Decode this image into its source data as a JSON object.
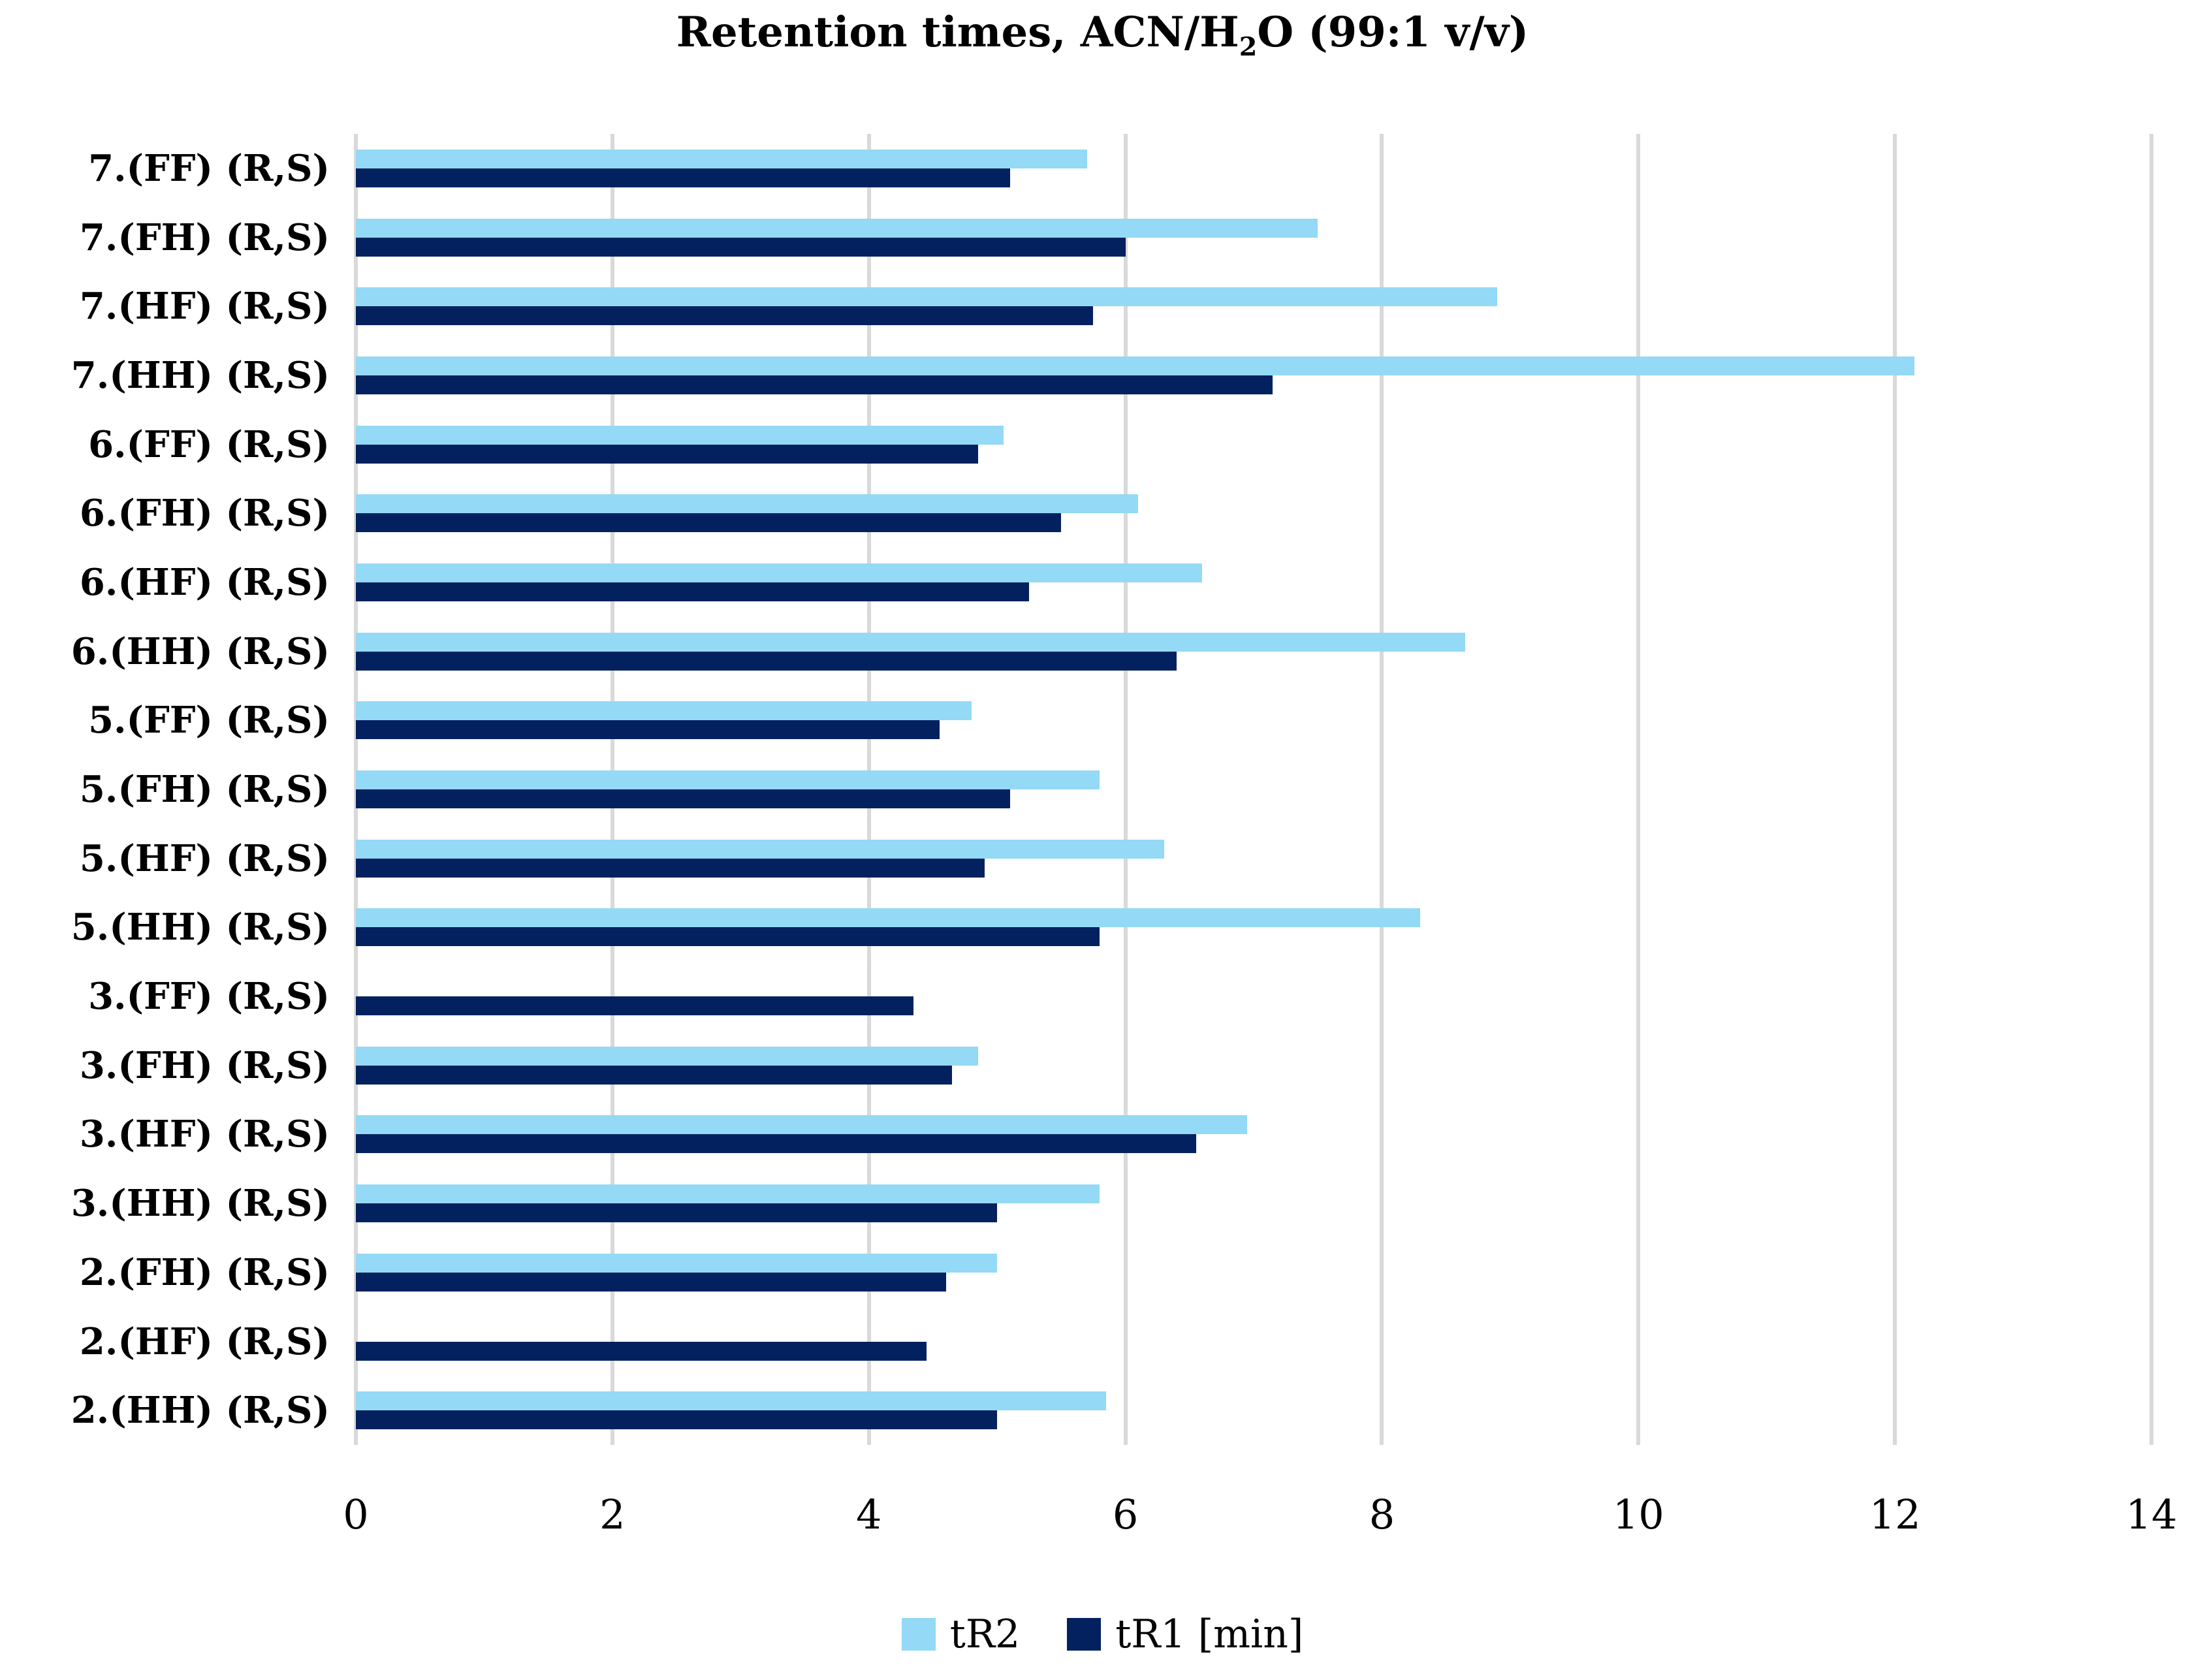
{
  "title": {
    "prefix": "Retention times, ACN/H",
    "subscript": "2",
    "suffix": "O (99:1 v/v)"
  },
  "chart_data": {
    "type": "bar",
    "orientation": "horizontal",
    "title": "Retention times, ACN/H2O (99:1 v/v)",
    "categories": [
      "7.(FF) (R,S)",
      "7.(FH) (R,S)",
      "7.(HF) (R,S)",
      "7.(HH) (R,S)",
      "6.(FF) (R,S)",
      "6.(FH) (R,S)",
      "6.(HF) (R,S)",
      "6.(HH) (R,S)",
      "5.(FF) (R,S)",
      "5.(FH) (R,S)",
      "5.(HF) (R,S)",
      "5.(HH) (R,S)",
      "3.(FF) (R,S)",
      "3.(FH) (R,S)",
      "3.(HF) (R,S)",
      "3.(HH) (R,S)",
      "2.(FH) (R,S)",
      "2.(HF) (R,S)",
      "2.(HH) (R,S)"
    ],
    "series": [
      {
        "name": "tR2",
        "color": "#94D9F5",
        "values": [
          5.7,
          7.5,
          8.9,
          12.15,
          5.05,
          6.1,
          6.6,
          8.65,
          4.8,
          5.8,
          6.3,
          8.3,
          null,
          4.85,
          6.95,
          5.8,
          5.0,
          null,
          5.85
        ]
      },
      {
        "name": "tR1 [min]",
        "color": "#02215E",
        "values": [
          5.1,
          6.0,
          5.75,
          7.15,
          4.85,
          5.5,
          5.25,
          6.4,
          4.55,
          5.1,
          4.9,
          5.8,
          4.35,
          4.65,
          6.55,
          5.0,
          4.6,
          4.45,
          5.0
        ]
      }
    ],
    "xlim": [
      0,
      14
    ],
    "xticks": [
      0,
      2,
      4,
      6,
      8,
      10,
      12,
      14
    ],
    "grid": "vertical",
    "gridline_color": "#D9D9D9",
    "legend_position": "bottom",
    "background_color": "#FFFFFF"
  }
}
